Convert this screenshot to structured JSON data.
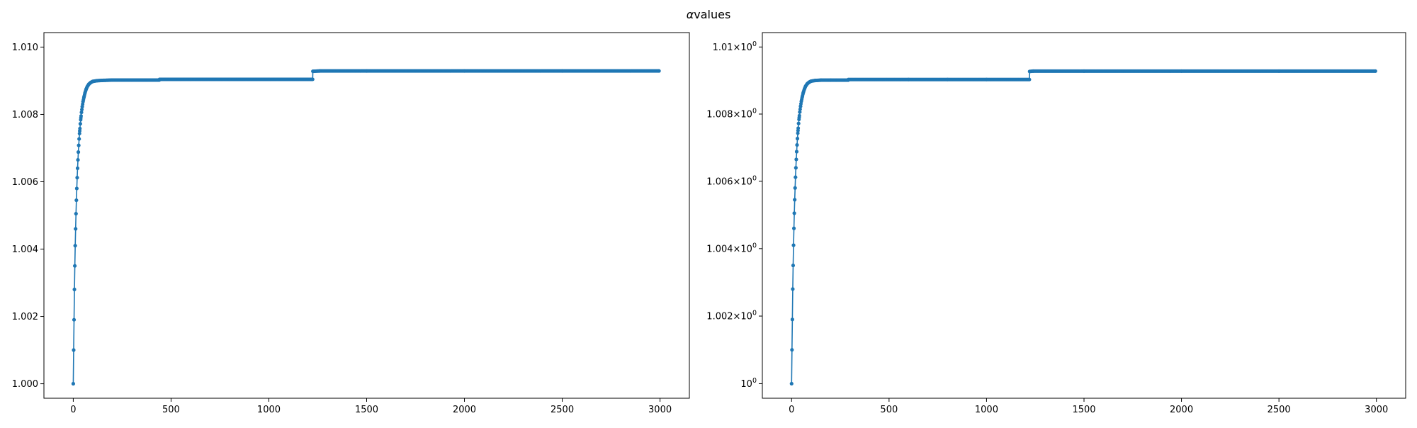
{
  "figure": {
    "title_symbol": "α",
    "title_text": "values"
  },
  "chart_data": [
    {
      "type": "line",
      "yscale": "linear",
      "xlim": [
        -150,
        3150
      ],
      "ylim": [
        0.99957,
        1.01043
      ],
      "xticks": [
        0,
        500,
        1000,
        1500,
        2000,
        2500,
        3000
      ],
      "xtick_labels": [
        "0",
        "500",
        "1000",
        "1500",
        "2000",
        "2500",
        "3000"
      ],
      "yticks": [
        1.0,
        1.002,
        1.004,
        1.006,
        1.008,
        1.01
      ],
      "ytick_labels": [
        "1.000",
        "1.002",
        "1.004",
        "1.006",
        "1.008",
        "1.010"
      ],
      "grid": false,
      "color": "#1f77b4",
      "marker": "circle",
      "series": [
        {
          "x": [
            0,
            2,
            4,
            6,
            8,
            10,
            12,
            14,
            16,
            18,
            20,
            22,
            24,
            26,
            28,
            30,
            33,
            36,
            39,
            42,
            46,
            50,
            55,
            60,
            66,
            72,
            80,
            90,
            100,
            120,
            150,
            200,
            300,
            440,
            441,
            600,
            800,
            1000,
            1224,
            1225,
            1260,
            1500,
            2000,
            2500,
            2995
          ],
          "y": [
            1.0,
            1.001,
            1.0019,
            1.0028,
            1.0035,
            1.0041,
            1.0046,
            1.00505,
            1.00545,
            1.0058,
            1.00612,
            1.0064,
            1.00665,
            1.00688,
            1.00708,
            1.00727,
            1.00751,
            1.00772,
            1.0079,
            1.00806,
            1.00823,
            1.00838,
            1.00852,
            1.00864,
            1.00875,
            1.00883,
            1.0089,
            1.00895,
            1.00898,
            1.009,
            1.00901,
            1.00902,
            1.00902,
            1.00902,
            1.00904,
            1.00904,
            1.00904,
            1.00904,
            1.00904,
            1.00928,
            1.00929,
            1.00929,
            1.00929,
            1.00929,
            1.00929
          ]
        }
      ]
    },
    {
      "type": "line",
      "yscale": "log",
      "xlim": [
        -150,
        3150
      ],
      "ylim": [
        0.99957,
        1.01043
      ],
      "xticks": [
        0,
        500,
        1000,
        1500,
        2000,
        2500,
        3000
      ],
      "xtick_labels": [
        "0",
        "500",
        "1000",
        "1500",
        "2000",
        "2500",
        "3000"
      ],
      "yticks": [
        1.0,
        1.002,
        1.004,
        1.006,
        1.008,
        1.01
      ],
      "ytick_labels": [
        {
          "mantissa": "",
          "base": "10",
          "exp": "0"
        },
        {
          "mantissa": "1.002",
          "base": "10",
          "exp": "0"
        },
        {
          "mantissa": "1.004",
          "base": "10",
          "exp": "0"
        },
        {
          "mantissa": "1.006",
          "base": "10",
          "exp": "0"
        },
        {
          "mantissa": "1.008",
          "base": "10",
          "exp": "0"
        },
        {
          "mantissa": "1.01",
          "base": "10",
          "exp": "0"
        }
      ],
      "grid": false,
      "color": "#1f77b4",
      "marker": "circle",
      "series": [
        {
          "x": [
            0,
            2,
            4,
            6,
            8,
            10,
            12,
            14,
            16,
            18,
            20,
            22,
            24,
            26,
            28,
            30,
            33,
            36,
            39,
            42,
            46,
            50,
            55,
            60,
            66,
            72,
            80,
            90,
            100,
            120,
            150,
            200,
            290,
            291,
            600,
            800,
            1000,
            1220,
            1221,
            1240,
            1500,
            2000,
            2500,
            2995
          ],
          "y": [
            1.0,
            1.001,
            1.0019,
            1.0028,
            1.0035,
            1.0041,
            1.0046,
            1.00505,
            1.00545,
            1.0058,
            1.00612,
            1.0064,
            1.00665,
            1.00688,
            1.00708,
            1.00727,
            1.00751,
            1.00772,
            1.0079,
            1.00806,
            1.00823,
            1.00838,
            1.00852,
            1.00864,
            1.00875,
            1.00883,
            1.0089,
            1.00895,
            1.00898,
            1.009,
            1.00901,
            1.00901,
            1.00901,
            1.00903,
            1.00903,
            1.00903,
            1.00903,
            1.00903,
            1.00927,
            1.00928,
            1.00928,
            1.00928,
            1.00928,
            1.00928
          ]
        }
      ]
    }
  ]
}
